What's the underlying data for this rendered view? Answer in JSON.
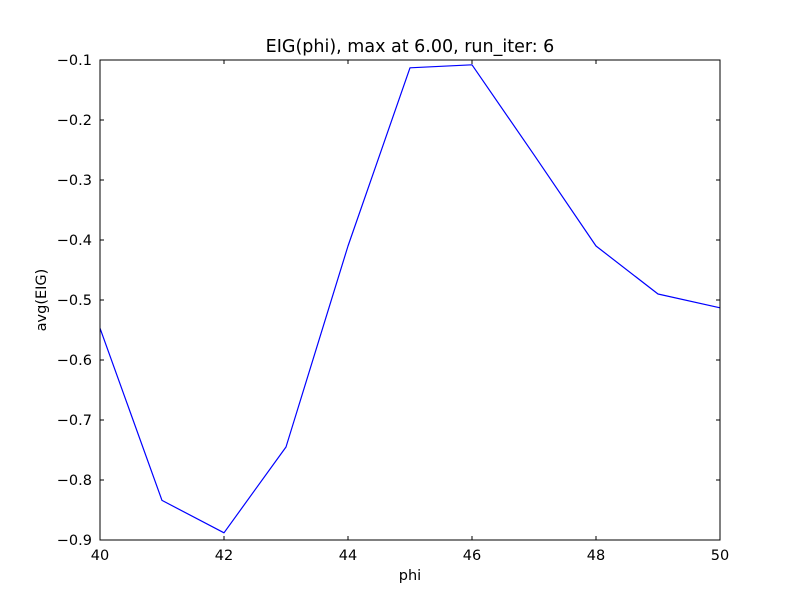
{
  "chart_data": {
    "type": "line",
    "title": "EIG(phi), max at 6.00, run_iter: 6",
    "xlabel": "phi",
    "ylabel": "avg(EIG)",
    "xlim": [
      40,
      50
    ],
    "ylim": [
      -0.9,
      -0.1
    ],
    "xticks": [
      40,
      42,
      44,
      46,
      48,
      50
    ],
    "xtick_labels": [
      "40",
      "42",
      "44",
      "46",
      "48",
      "50"
    ],
    "yticks": [
      -0.9,
      -0.8,
      -0.7,
      -0.6,
      -0.5,
      -0.4,
      -0.3,
      -0.2,
      -0.1
    ],
    "ytick_labels": [
      "−0.9",
      "−0.8",
      "−0.7",
      "−0.6",
      "−0.5",
      "−0.4",
      "−0.3",
      "−0.2",
      "−0.1"
    ],
    "grid": false,
    "series": [
      {
        "color": "#0000ff",
        "x": [
          40,
          41,
          42,
          43,
          44,
          45,
          46,
          47,
          48,
          49,
          50
        ],
        "y": [
          -0.547,
          -0.834,
          -0.888,
          -0.745,
          -0.41,
          -0.113,
          -0.108,
          -0.258,
          -0.41,
          -0.49,
          -0.513
        ]
      }
    ]
  }
}
